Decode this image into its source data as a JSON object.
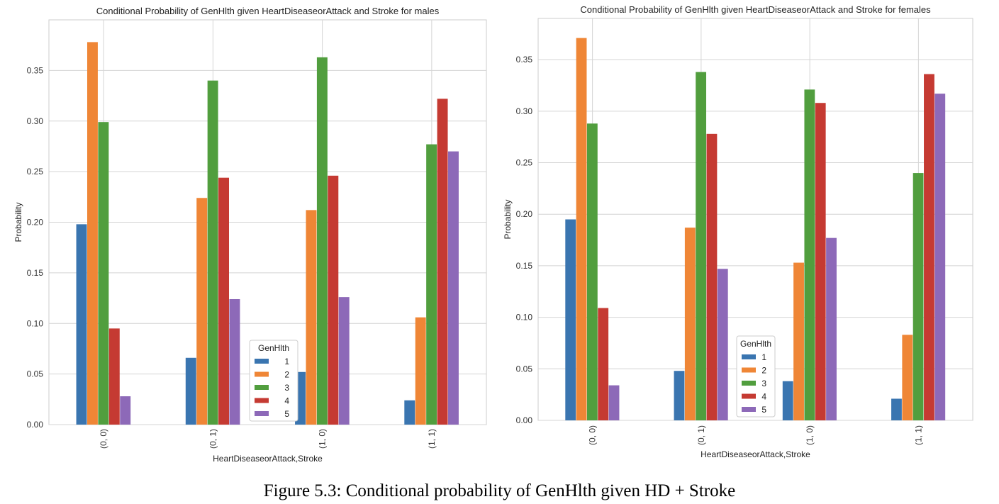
{
  "caption": "Figure 5.3: Conditional probability of GenHlth given HD + Stroke",
  "colors": [
    "#3a75b0",
    "#ef8636",
    "#519e3e",
    "#c53a32",
    "#8d69b8"
  ],
  "chart_data": [
    {
      "type": "bar",
      "title": "Conditional Probability of GenHlth given HeartDiseaseorAttack and Stroke for males",
      "xlabel": "HeartDiseaseorAttack,Stroke",
      "ylabel": "Probability",
      "categories": [
        "(0, 0)",
        "(0, 1)",
        "(1, 0)",
        "(1, 1)"
      ],
      "ylim": [
        0,
        0.4
      ],
      "yticks": [
        "0.00",
        "0.05",
        "0.10",
        "0.15",
        "0.20",
        "0.25",
        "0.30",
        "0.35"
      ],
      "grid": true,
      "legend": {
        "title": "GenHlth",
        "placement": "center"
      },
      "series": [
        {
          "name": "1",
          "values": [
            0.198,
            0.066,
            0.052,
            0.024
          ]
        },
        {
          "name": "2",
          "values": [
            0.378,
            0.224,
            0.212,
            0.106
          ]
        },
        {
          "name": "3",
          "values": [
            0.299,
            0.34,
            0.363,
            0.277
          ]
        },
        {
          "name": "4",
          "values": [
            0.095,
            0.244,
            0.246,
            0.322
          ]
        },
        {
          "name": "5",
          "values": [
            0.028,
            0.124,
            0.126,
            0.27
          ]
        }
      ]
    },
    {
      "type": "bar",
      "title": "Conditional Probability of GenHlth given HeartDiseaseorAttack and Stroke for females",
      "xlabel": "HeartDiseaseorAttack,Stroke",
      "ylabel": "Probability",
      "categories": [
        "(0, 0)",
        "(0, 1)",
        "(1, 0)",
        "(1, 1)"
      ],
      "ylim": [
        0,
        0.39
      ],
      "yticks": [
        "0.00",
        "0.05",
        "0.10",
        "0.15",
        "0.20",
        "0.25",
        "0.30",
        "0.35"
      ],
      "grid": true,
      "legend": {
        "title": "GenHlth",
        "placement": "center"
      },
      "series": [
        {
          "name": "1",
          "values": [
            0.195,
            0.048,
            0.038,
            0.021
          ]
        },
        {
          "name": "2",
          "values": [
            0.371,
            0.187,
            0.153,
            0.083
          ]
        },
        {
          "name": "3",
          "values": [
            0.288,
            0.338,
            0.321,
            0.24
          ]
        },
        {
          "name": "4",
          "values": [
            0.109,
            0.278,
            0.308,
            0.336
          ]
        },
        {
          "name": "5",
          "values": [
            0.034,
            0.147,
            0.177,
            0.317
          ]
        }
      ]
    }
  ]
}
